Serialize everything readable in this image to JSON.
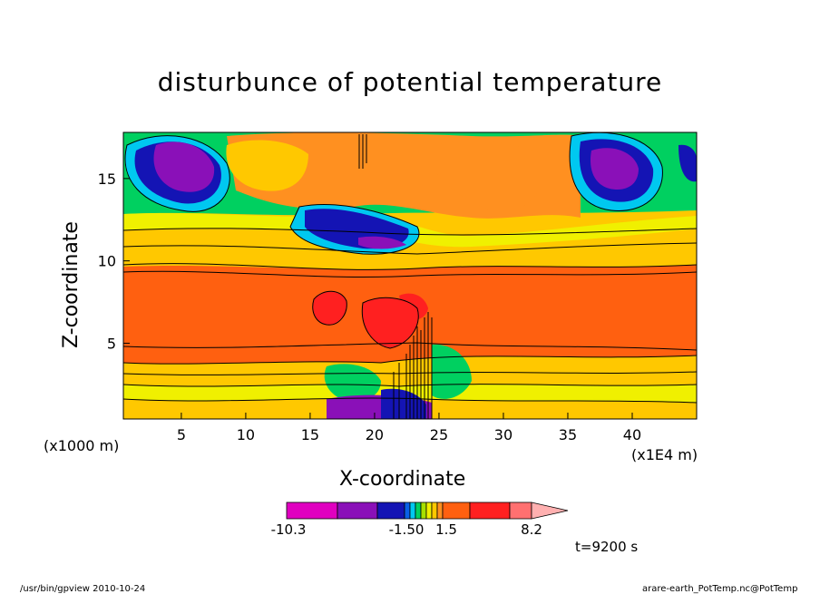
{
  "chart_data": {
    "type": "heatmap",
    "title": "disturbunce of potential temperature",
    "xlabel": "X-coordinate",
    "ylabel": "Z-coordinate",
    "x_unit": "(x1E4 m)",
    "y_unit": "(x1000 m)",
    "x_ticks": [
      "5",
      "10",
      "15",
      "20",
      "25",
      "30",
      "35",
      "40"
    ],
    "x_tick_values": [
      5,
      10,
      15,
      20,
      25,
      30,
      35,
      40
    ],
    "y_ticks": [
      "5",
      "10",
      "15"
    ],
    "y_tick_values": [
      5,
      10,
      15
    ],
    "xlim": [
      0.5,
      45
    ],
    "ylim": [
      0.4,
      17.8
    ],
    "colorbar": {
      "labels": [
        "-10.3",
        "-1.50",
        "1.5",
        "8.2"
      ],
      "colors": [
        "#e000c0",
        "#8a10b8",
        "#1414b4",
        "#0a60e8",
        "#00c8f0",
        "#00d060",
        "#a8e000",
        "#f0f000",
        "#ffc800",
        "#ff9020",
        "#ff6010",
        "#ff2020",
        "#ff7070",
        "#ffb0b0"
      ]
    },
    "annotation": "t=9200 s",
    "bands": [
      {
        "z_range": [
          0.4,
          1.2
        ],
        "value": "1.5 to 3",
        "color": "#f0f000"
      },
      {
        "z_range": [
          1.2,
          3.5
        ],
        "value": "3 to 4.5",
        "color": "#ffc800"
      },
      {
        "z_range": [
          3.5,
          9.8
        ],
        "value": "6 to 8.2",
        "color": "#ff6010"
      },
      {
        "z_range": [
          9.8,
          12
        ],
        "value": "1.5 to 4.5",
        "color": "#ffc800"
      },
      {
        "z_range": [
          12,
          17.8
        ],
        "value": "-10.3 to 6",
        "color": "mixed"
      }
    ]
  },
  "footer": {
    "left": "/usr/bin/gpview   2010-10-24",
    "right": "arare-earth_PotTemp.nc@PotTemp"
  }
}
